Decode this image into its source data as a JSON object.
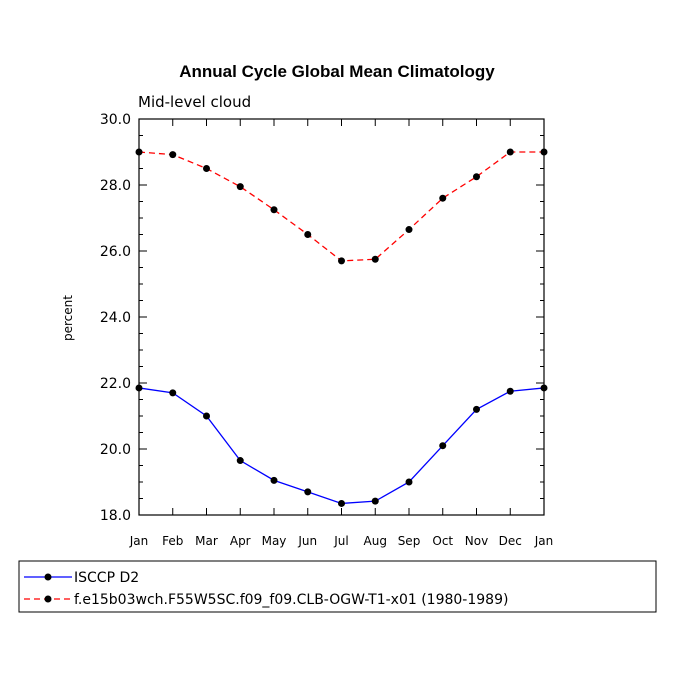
{
  "chart_data": {
    "type": "line",
    "title": "Annual Cycle Global Mean Climatology",
    "subtitle": "Mid-level cloud",
    "xlabel": "",
    "ylabel": "percent",
    "categories": [
      "Jan",
      "Feb",
      "Mar",
      "Apr",
      "May",
      "Jun",
      "Jul",
      "Aug",
      "Sep",
      "Oct",
      "Nov",
      "Dec",
      "Jan"
    ],
    "ylim": [
      18.0,
      30.0
    ],
    "yticks": [
      "18.0",
      "20.0",
      "22.0",
      "24.0",
      "26.0",
      "28.0",
      "30.0"
    ],
    "series": [
      {
        "name": "ISCCP D2",
        "color": "#0000ff",
        "style": "solid",
        "values": [
          21.85,
          21.7,
          21.0,
          19.65,
          19.05,
          18.7,
          18.35,
          18.42,
          19.0,
          20.1,
          21.2,
          21.75,
          21.85
        ]
      },
      {
        "name": "f.e15b03wch.F55W5SC.f09_f09.CLB-OGW-T1-x01 (1980-1989)",
        "color": "#ff0000",
        "style": "dashed",
        "values": [
          29.0,
          28.92,
          28.5,
          27.95,
          27.25,
          26.5,
          25.7,
          25.75,
          26.65,
          27.6,
          28.25,
          29.0,
          29.0
        ]
      }
    ],
    "legend_position": "bottom"
  }
}
